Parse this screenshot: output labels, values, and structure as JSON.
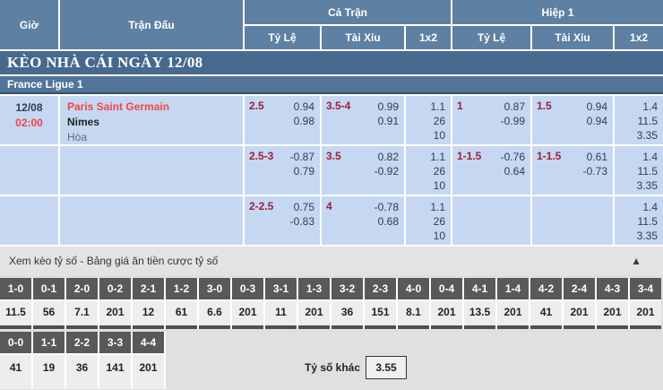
{
  "header": {
    "time": "Giờ",
    "match": "Trận Đấu",
    "full_match": "Cả Trận",
    "first_half": "Hiệp 1",
    "sub": {
      "handicap": "Tỷ Lệ",
      "over_under": "Tài Xỉu",
      "one_x_two": "1x2"
    }
  },
  "title_bar": "KÈO NHÀ CÁI NGÀY 12/08",
  "league_bar": "France Ligue 1",
  "match": {
    "date": "12/08",
    "time": "02:00",
    "home": "Paris Saint Germain",
    "away": "Nimes",
    "draw_label": "Hòa"
  },
  "rows": [
    {
      "ft_handicap": {
        "line": "2.5",
        "top": "0.94",
        "bottom": "0.98"
      },
      "ft_ou": {
        "line": "3.5-4",
        "top": "0.99",
        "bottom": "0.91"
      },
      "ft_1x2": [
        "1.1",
        "26",
        "10"
      ],
      "h1_handicap": {
        "line": "1",
        "top": "0.87",
        "bottom": "-0.99"
      },
      "h1_ou": {
        "line": "1.5",
        "top": "0.94",
        "bottom": "0.94"
      },
      "h1_1x2": [
        "1.4",
        "11.5",
        "3.35"
      ]
    },
    {
      "ft_handicap": {
        "line": "2.5-3",
        "top": "-0.87",
        "bottom": "0.79"
      },
      "ft_ou": {
        "line": "3.5",
        "top": "0.82",
        "bottom": "-0.92"
      },
      "ft_1x2": [
        "1.1",
        "26",
        "10"
      ],
      "h1_handicap": {
        "line": "1-1.5",
        "top": "-0.76",
        "bottom": "0.64"
      },
      "h1_ou": {
        "line": "1-1.5",
        "top": "0.61",
        "bottom": "-0.73"
      },
      "h1_1x2": [
        "1.4",
        "11.5",
        "3.35"
      ]
    },
    {
      "ft_handicap": {
        "line": "2-2.5",
        "top": "0.75",
        "bottom": "-0.83"
      },
      "ft_ou": {
        "line": "4",
        "top": "-0.78",
        "bottom": "0.68"
      },
      "ft_1x2": [
        "1.1",
        "26",
        "10"
      ],
      "h1_handicap": {
        "line": "",
        "top": "",
        "bottom": ""
      },
      "h1_ou": {
        "line": "",
        "top": "",
        "bottom": ""
      },
      "h1_1x2": [
        "1.4",
        "11.5",
        "3.35"
      ]
    }
  ],
  "score_section": {
    "title": "Xem kèo tỷ số - Bảng giá ăn tiền cược tỷ số",
    "collapse_icon": "▲",
    "row1": [
      {
        "score": "1-0",
        "odds": "11.5"
      },
      {
        "score": "0-1",
        "odds": "56"
      },
      {
        "score": "2-0",
        "odds": "7.1"
      },
      {
        "score": "0-2",
        "odds": "201"
      },
      {
        "score": "2-1",
        "odds": "12"
      },
      {
        "score": "1-2",
        "odds": "61"
      },
      {
        "score": "3-0",
        "odds": "6.6"
      },
      {
        "score": "0-3",
        "odds": "201"
      },
      {
        "score": "3-1",
        "odds": "11"
      },
      {
        "score": "1-3",
        "odds": "201"
      },
      {
        "score": "3-2",
        "odds": "36"
      },
      {
        "score": "2-3",
        "odds": "151"
      },
      {
        "score": "4-0",
        "odds": "8.1"
      },
      {
        "score": "0-4",
        "odds": "201"
      },
      {
        "score": "4-1",
        "odds": "13.5"
      },
      {
        "score": "1-4",
        "odds": "201"
      },
      {
        "score": "4-2",
        "odds": "41"
      },
      {
        "score": "2-4",
        "odds": "201"
      },
      {
        "score": "4-3",
        "odds": "201"
      },
      {
        "score": "3-4",
        "odds": "201"
      }
    ],
    "row2": [
      {
        "score": "0-0",
        "odds": "41"
      },
      {
        "score": "1-1",
        "odds": "19"
      },
      {
        "score": "2-2",
        "odds": "36"
      },
      {
        "score": "3-3",
        "odds": "141"
      },
      {
        "score": "4-4",
        "odds": "201"
      }
    ],
    "other_score_label": "Tỷ số khác",
    "other_score_value": "3.55"
  },
  "colors": {
    "header_blue": "#5e80a3",
    "title_blue": "#47698e",
    "league_blue": "#527599",
    "row_bg": "#c6d7f2",
    "handicap_maroon": "#9c2137",
    "odds_text": "#333c4e",
    "hot_red": "#ef4747",
    "tile_dark": "#595959",
    "tile_light": "#ededed",
    "section_gray": "#e3e3e3"
  }
}
